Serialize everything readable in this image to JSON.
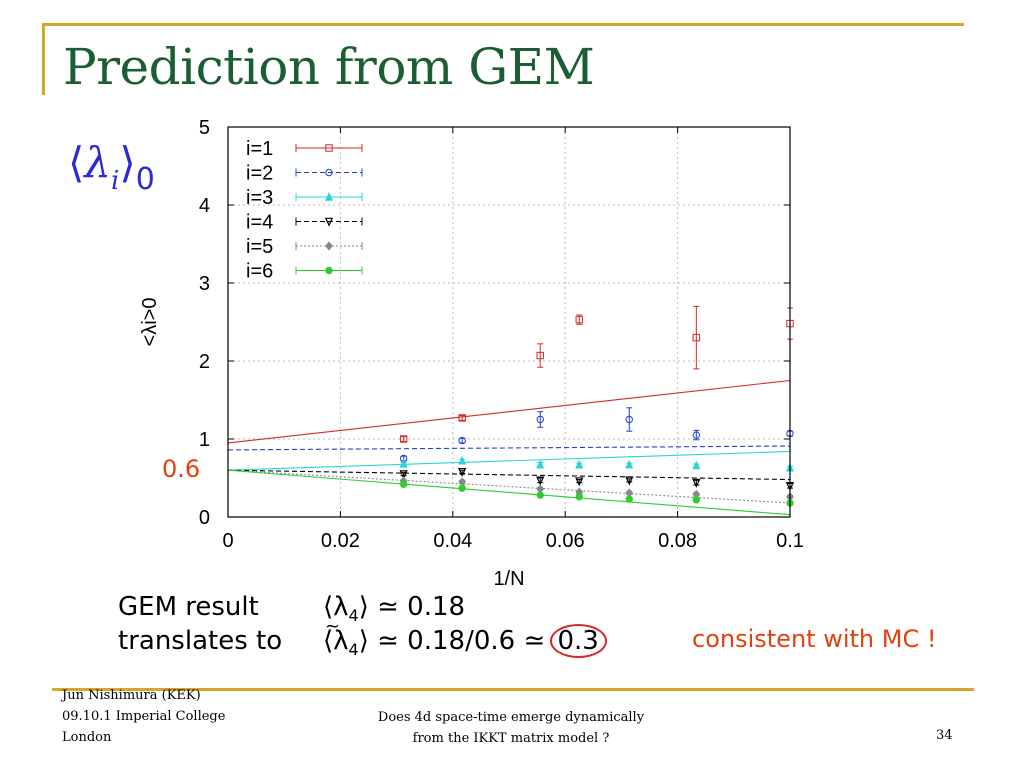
{
  "slide": {
    "title": "Prediction from GEM",
    "lambda_symbol": "λ",
    "lambda_index": "i",
    "lambda_sub": "0",
    "left_note": "0.6",
    "gem_label": "GEM result",
    "gem_eq_open": "⟨λ",
    "gem_eq_sub": "4",
    "gem_eq_close": "⟩ ≃ 0.18",
    "translate_label": "translates to",
    "translate_eq_open": "⟨λ",
    "translate_eq_sub": "4",
    "translate_eq_close": "⟩ ≃ 0.18/0.6 ≃ ",
    "translate_circled": "0.3",
    "consistent_note": "consistent with MC !",
    "footer_author": "Jun Nishimura (KEK)",
    "footer_date": "09.10.1 Imperial College",
    "footer_place": "London",
    "footer_title_1": "Does 4d space-time emerge dynamically",
    "footer_title_2": "from the IKKT matrix model ?",
    "page_number": "34"
  },
  "colors": {
    "title": "#1b5e33",
    "accent_gold": "#d6a62a",
    "note_orange": "#e0420f",
    "lambda_blue": "#2a2ad6"
  },
  "chart_data": {
    "type": "scatter",
    "xlabel": "1/N",
    "ylabel": "<λi>0",
    "xlim": [
      0,
      0.1
    ],
    "ylim": [
      0,
      5
    ],
    "xticks": [
      "0",
      "0.02",
      "0.04",
      "0.06",
      "0.08",
      "0.1"
    ],
    "yticks": [
      "0",
      "1",
      "2",
      "3",
      "4",
      "5"
    ],
    "grid": true,
    "legend_position": "top-left",
    "series": [
      {
        "name": "i=1",
        "color": "#d62728",
        "marker": "square",
        "dash": "solid",
        "points": [
          [
            0.03125,
            1.0,
            0.03
          ],
          [
            0.041667,
            1.27,
            0.03
          ],
          [
            0.055556,
            2.07,
            0.15
          ],
          [
            0.0625,
            2.53,
            0.06
          ],
          [
            0.083333,
            2.3,
            0.4
          ],
          [
            0.1,
            2.48,
            0.2
          ]
        ],
        "fit": [
          [
            0,
            0.95
          ],
          [
            0.1,
            1.75
          ]
        ]
      },
      {
        "name": "i=2",
        "color": "#1f3fd6",
        "marker": "circle",
        "dash": "dashed",
        "points": [
          [
            0.03125,
            0.75,
            0.03
          ],
          [
            0.041667,
            0.98,
            0.03
          ],
          [
            0.055556,
            1.25,
            0.1
          ],
          [
            0.0714,
            1.25,
            0.15
          ],
          [
            0.083333,
            1.05,
            0.06
          ],
          [
            0.1,
            1.07,
            0.03
          ]
        ],
        "fit": [
          [
            0,
            0.86
          ],
          [
            0.1,
            0.91
          ]
        ]
      },
      {
        "name": "i=3",
        "color": "#2bd4d4",
        "marker": "triangle",
        "dash": "solid",
        "points": [
          [
            0.03125,
            0.68,
            0.02
          ],
          [
            0.041667,
            0.72,
            0.02
          ],
          [
            0.055556,
            0.67,
            0.03
          ],
          [
            0.0625,
            0.67,
            0.02
          ],
          [
            0.0714,
            0.67,
            0.02
          ],
          [
            0.083333,
            0.66,
            0.02
          ],
          [
            0.1,
            0.63,
            0.02
          ]
        ],
        "fit": [
          [
            0,
            0.6
          ],
          [
            0.1,
            0.84
          ]
        ]
      },
      {
        "name": "i=4",
        "color": "#000000",
        "marker": "down-triangle",
        "dash": "dashed",
        "points": [
          [
            0.03125,
            0.55,
            0.02
          ],
          [
            0.041667,
            0.58,
            0.02
          ],
          [
            0.055556,
            0.47,
            0.03
          ],
          [
            0.0625,
            0.46,
            0.02
          ],
          [
            0.0714,
            0.47,
            0.02
          ],
          [
            0.083333,
            0.44,
            0.03
          ],
          [
            0.1,
            0.4,
            0.03
          ]
        ],
        "fit": [
          [
            0,
            0.6
          ],
          [
            0.1,
            0.48
          ]
        ]
      },
      {
        "name": "i=5",
        "color": "#888888",
        "marker": "diamond",
        "dash": "dotted",
        "points": [
          [
            0.03125,
            0.46,
            0.02
          ],
          [
            0.041667,
            0.45,
            0.02
          ],
          [
            0.055556,
            0.36,
            0.02
          ],
          [
            0.0625,
            0.32,
            0.02
          ],
          [
            0.0714,
            0.31,
            0.02
          ],
          [
            0.083333,
            0.29,
            0.02
          ],
          [
            0.1,
            0.26,
            0.02
          ]
        ],
        "fit": [
          [
            0,
            0.6
          ],
          [
            0.1,
            0.18
          ]
        ]
      },
      {
        "name": "i=6",
        "color": "#2ecc2e",
        "marker": "filled-circle",
        "dash": "solid",
        "points": [
          [
            0.03125,
            0.42,
            0.02
          ],
          [
            0.041667,
            0.37,
            0.02
          ],
          [
            0.055556,
            0.28,
            0.02
          ],
          [
            0.0625,
            0.26,
            0.02
          ],
          [
            0.0714,
            0.23,
            0.02
          ],
          [
            0.083333,
            0.22,
            0.02
          ],
          [
            0.1,
            0.18,
            0.02
          ]
        ],
        "fit": [
          [
            0,
            0.6
          ],
          [
            0.1,
            0.03
          ]
        ]
      }
    ]
  }
}
